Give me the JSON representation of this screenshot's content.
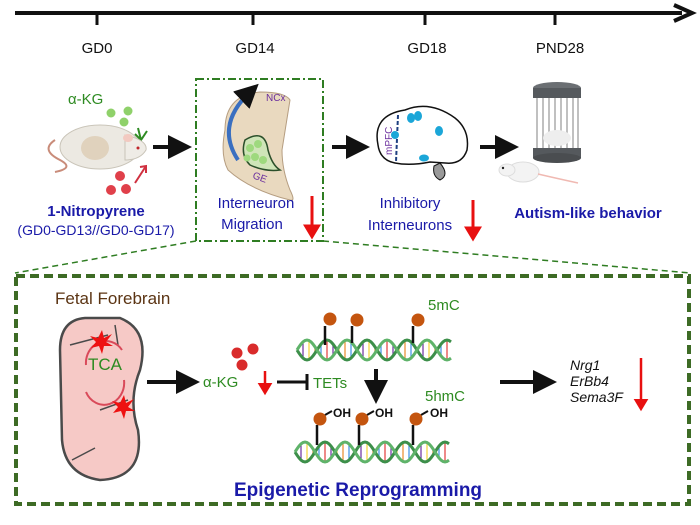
{
  "timeline": {
    "points": [
      "GD0",
      "GD14",
      "GD18",
      "PND28"
    ]
  },
  "exposure": {
    "supplement_label": "α-KG",
    "toxicant_label": "1-Nitropyrene",
    "toxicant_window": "(GD0-GD13//GD0-GD17)"
  },
  "gd14_panel": {
    "region_ncx": "NCx",
    "region_ge": "GE",
    "result_line1": "Interneuron",
    "result_line2": "Migration",
    "direction": "decrease"
  },
  "gd18_panel": {
    "region_mpfc": "mPFC",
    "result_line1": "Inhibitory",
    "result_line2": "Interneurons",
    "direction": "decrease"
  },
  "pnd28_panel": {
    "result": "Autism-like behavior"
  },
  "mechanism": {
    "title": "Fetal Forebrain",
    "cycle_label": "TCA",
    "metabolite_label": "α-KG",
    "enzyme_label": "TETs",
    "methyl_label": "5mC",
    "hydroxymethyl_label": "5hmC",
    "oh_labels": [
      "OH",
      "OH",
      "OH"
    ],
    "genes": [
      "Nrg1",
      "ErBb4",
      "Sema3F"
    ],
    "footer": "Epigenetic Reprogramming"
  },
  "colors": {
    "green_text": "#2e8b22",
    "blue_text": "#1a1aa8",
    "decrease_arrow": "#e81010",
    "box_border": "#3d6b25",
    "methyl_group": "#c4550f",
    "brown_title": "#5b3413"
  }
}
